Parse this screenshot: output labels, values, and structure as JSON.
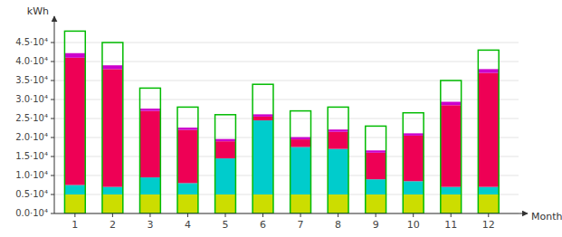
{
  "chart_data": {
    "type": "bar",
    "stacked": true,
    "grid": true,
    "xlabel": "Month",
    "ylabel": "kWh",
    "x": [
      1,
      2,
      3,
      4,
      5,
      6,
      7,
      8,
      9,
      10,
      11,
      12
    ],
    "xlim": [
      0.45,
      12.8
    ],
    "xticks": [
      1,
      2,
      3,
      4,
      5,
      6,
      7,
      8,
      9,
      10,
      11,
      12
    ],
    "ylim": [
      0,
      50000
    ],
    "yticks": [
      {
        "value": 0,
        "label": "0.0·10⁴"
      },
      {
        "value": 5000,
        "label": "0.5·10⁴"
      },
      {
        "value": 10000,
        "label": "1.0·10⁴"
      },
      {
        "value": 15000,
        "label": "1.5·10⁴"
      },
      {
        "value": 20000,
        "label": "2.0·10⁴"
      },
      {
        "value": 25000,
        "label": "2.5·10⁴"
      },
      {
        "value": 30000,
        "label": "3.0·10⁴"
      },
      {
        "value": 35000,
        "label": "3.5·10⁴"
      },
      {
        "value": 40000,
        "label": "4.0·10⁴"
      },
      {
        "value": 45000,
        "label": "4.5·10⁴"
      }
    ],
    "series": [
      {
        "color": "#CCDD00",
        "values": [
          5000,
          5000,
          5000,
          5000,
          5000,
          5000,
          5000,
          5000,
          5000,
          5000,
          5000,
          5000
        ]
      },
      {
        "color": "#00CCCC",
        "values": [
          2500,
          2000,
          4500,
          3000,
          9500,
          19500,
          12500,
          12000,
          4000,
          3500,
          2000,
          2000
        ]
      },
      {
        "color": "#EE0055",
        "values": [
          33500,
          31000,
          17500,
          14000,
          4500,
          1000,
          2000,
          4500,
          7000,
          12000,
          21500,
          30000
        ]
      },
      {
        "color": "#CC00CC",
        "values": [
          1200,
          1000,
          600,
          600,
          600,
          600,
          600,
          600,
          600,
          600,
          900,
          1000
        ]
      },
      {
        "type": "outline",
        "color": "#00BB00",
        "values": [
          48000,
          45000,
          33000,
          28000,
          26000,
          34000,
          27000,
          28000,
          23000,
          26500,
          35000,
          43000
        ]
      }
    ]
  }
}
